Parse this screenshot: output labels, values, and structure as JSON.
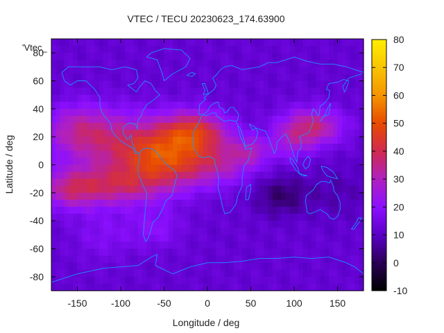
{
  "chart_data": {
    "type": "heatmap",
    "title": "VTEC / TECU 20230623_174.63900",
    "xlabel": "Longitude / deg",
    "ylabel": "Latitude / deg",
    "series_label": "'Vtec_",
    "xlim": [
      -180,
      180
    ],
    "ylim": [
      -90,
      90
    ],
    "x_ticks": [
      -150,
      -100,
      -50,
      0,
      50,
      100,
      150
    ],
    "y_ticks": [
      -80,
      -60,
      -40,
      -20,
      0,
      20,
      40,
      60,
      80
    ],
    "colorbar": {
      "range": [
        -10,
        80
      ],
      "ticks": [
        -10,
        0,
        10,
        20,
        30,
        40,
        50,
        60,
        70,
        80
      ]
    },
    "grid": false,
    "overlay": "coastlines",
    "colors": {
      "coastline": "#1e90ff",
      "palette": [
        "#000000",
        "#2b0055",
        "#5a00c8",
        "#8c10ff",
        "#b020c0",
        "#d02a50",
        "#e84a00",
        "#f59400",
        "#f8c400",
        "#ffee00"
      ]
    },
    "description_values": {
      "north_equatorial_band_peak": 52,
      "southern_pacific_band": 38,
      "indian_ocean_minimum": 4,
      "polar_background": 12
    }
  }
}
